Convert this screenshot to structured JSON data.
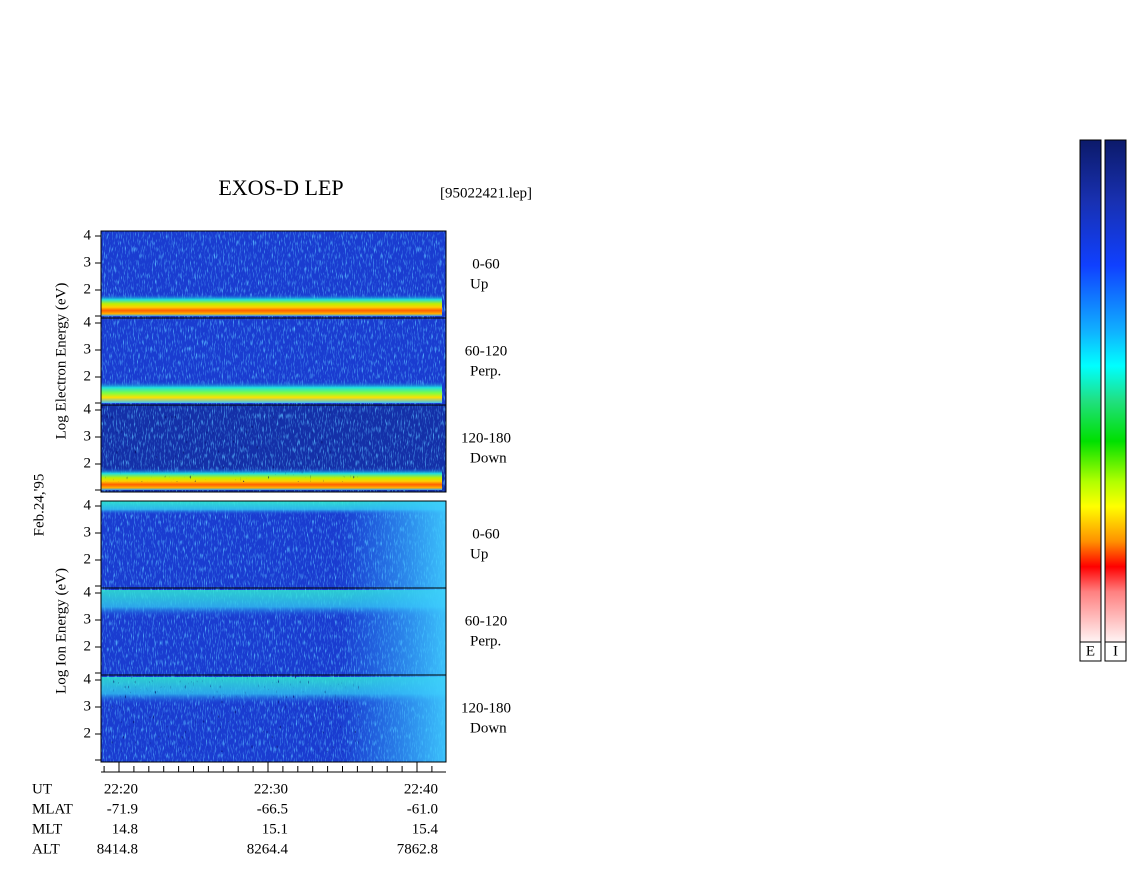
{
  "title": "EXOS-D LEP",
  "file": "[95022421.lep]",
  "date_label": "Feb.24,'95",
  "groups": [
    {
      "label": "Log  Electron  Energy (eV)",
      "panels": [
        {
          "range": "0-60",
          "direction": "Up",
          "yticks": [
            2,
            3,
            4
          ]
        },
        {
          "range": "60-120",
          "direction": "Perp.",
          "yticks": [
            2,
            3,
            4
          ]
        },
        {
          "range": "120-180",
          "direction": "Down",
          "yticks": [
            2,
            3,
            4
          ]
        }
      ]
    },
    {
      "label": "Log  Ion  Energy (eV)",
      "panels": [
        {
          "range": "0-60",
          "direction": "Up",
          "yticks": [
            2,
            3,
            4
          ]
        },
        {
          "range": "60-120",
          "direction": "Perp.",
          "yticks": [
            2,
            3,
            4
          ]
        },
        {
          "range": "120-180",
          "direction": "Down",
          "yticks": [
            2,
            3,
            4
          ]
        }
      ]
    }
  ],
  "ephemeris": [
    {
      "name": "UT",
      "values": [
        "22:20",
        "22:30",
        "22:40"
      ]
    },
    {
      "name": "MLAT",
      "values": [
        "-71.9",
        "-66.5",
        "-61.0"
      ]
    },
    {
      "name": "MLT",
      "values": [
        "14.8",
        "15.1",
        "15.4"
      ]
    },
    {
      "name": "ALT",
      "values": [
        "8414.8",
        "8264.4",
        "7862.8"
      ]
    }
  ],
  "colorbars": [
    "E",
    "I"
  ]
}
